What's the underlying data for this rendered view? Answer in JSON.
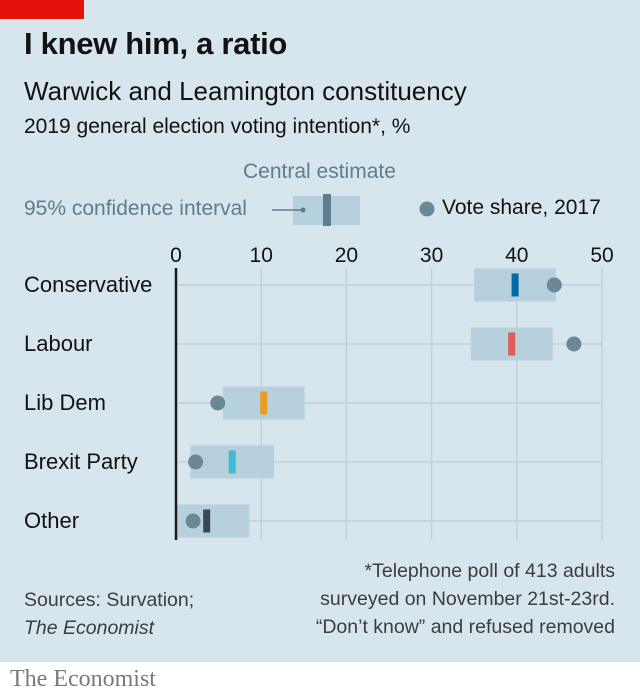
{
  "header": {
    "title": "I knew him, a ratio",
    "subtitle": "Warwick and Leamington constituency",
    "description": "2019 general election voting intention*, %"
  },
  "legend": {
    "central_estimate": "Central estimate",
    "confidence_interval": "95% confidence interval",
    "vote_share_2017": "Vote share, 2017"
  },
  "footnote": {
    "line1": "*Telephone poll of 413 adults",
    "line2": "surveyed on November 21st-23rd.",
    "line3": "“Don’t know” and refused removed"
  },
  "sources": {
    "line1": "Sources: Survation;",
    "line2": "The Economist"
  },
  "brand": "The Economist",
  "colors": {
    "background": "#d7e5ed",
    "interval": "#b6d0de",
    "dot": "#6a8896",
    "gridline": "#c0d1db",
    "axis": "#1a1a1a",
    "Conservative": "#006ba6",
    "Labour": "#e05a58",
    "Lib Dem": "#ea9c1d",
    "Brexit Party": "#3ebcd2",
    "Other": "#3b4750",
    "legend_marker": "#5e7d8f"
  },
  "chart_data": {
    "type": "dot-range",
    "title": "I knew him, a ratio",
    "subtitle": "Warwick and Leamington constituency",
    "xlim": [
      0,
      50
    ],
    "xticks": [
      0,
      10,
      20,
      30,
      40,
      50
    ],
    "categories": [
      "Conservative",
      "Labour",
      "Lib Dem",
      "Brexit Party",
      "Other"
    ],
    "central_estimate": [
      39.8,
      39.4,
      10.3,
      6.6,
      3.6
    ],
    "ci_low": [
      35.0,
      34.6,
      5.5,
      1.7,
      0.0
    ],
    "ci_high": [
      44.6,
      44.2,
      15.1,
      11.5,
      8.6
    ],
    "vote_share_2017": [
      44.4,
      46.7,
      4.9,
      2.3,
      2.0
    ],
    "grid": true
  }
}
